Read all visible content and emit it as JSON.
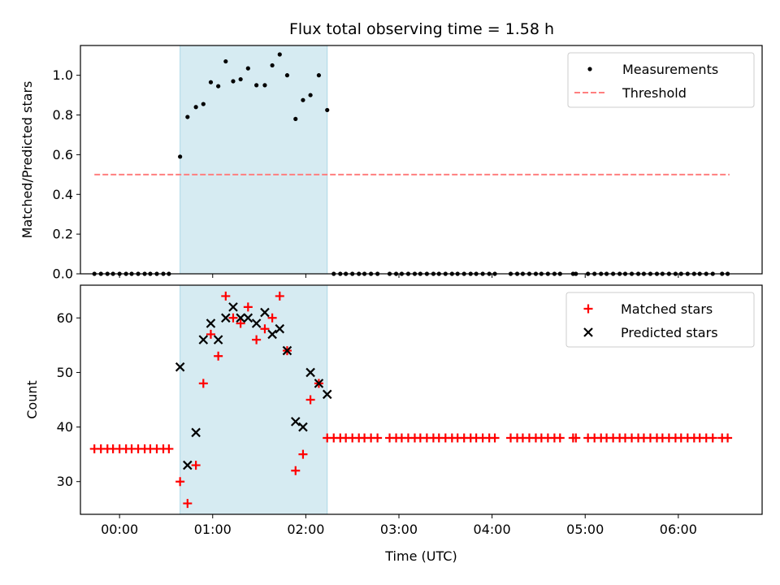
{
  "chart_data": [
    {
      "type": "scatter",
      "title": "Flux total observing time = 1.58 h",
      "xlabel": "",
      "ylabel": "Matched/Predicted stars",
      "ylim": [
        0,
        1.15
      ],
      "xlim_hours": [
        -0.42,
        6.9
      ],
      "yticks": [
        0.0,
        0.2,
        0.4,
        0.6,
        0.8,
        1.0
      ],
      "ytick_labels": [
        "0.0",
        "0.2",
        "0.4",
        "0.6",
        "0.8",
        "1.0"
      ],
      "shaded_region_hours": [
        0.65,
        2.23
      ],
      "legend_position": "upper right",
      "legend": [
        "Measurements",
        "Threshold"
      ],
      "threshold": {
        "name": "Threshold",
        "y": 0.5,
        "x_range_hours": [
          -0.27,
          6.55
        ]
      },
      "series": [
        {
          "name": "Measurements",
          "x_hours": [
            -0.27,
            -0.2,
            -0.13,
            -0.07,
            0.0,
            0.07,
            0.13,
            0.2,
            0.27,
            0.33,
            0.4,
            0.47,
            0.53,
            0.65,
            0.73,
            0.82,
            0.9,
            0.98,
            1.06,
            1.14,
            1.22,
            1.3,
            1.38,
            1.47,
            1.56,
            1.64,
            1.72,
            1.8,
            1.89,
            1.97,
            2.05,
            2.14,
            2.23,
            2.3,
            2.37,
            2.43,
            2.5,
            2.57,
            2.63,
            2.7,
            2.77,
            2.9,
            2.97,
            3.03,
            3.1,
            3.17,
            3.23,
            3.3,
            3.37,
            3.43,
            3.5,
            3.57,
            3.63,
            3.7,
            3.77,
            3.83,
            3.9,
            3.97,
            4.03,
            4.2,
            4.27,
            4.33,
            4.4,
            4.47,
            4.53,
            4.6,
            4.67,
            4.73,
            4.87,
            4.9,
            5.03,
            5.1,
            5.17,
            5.23,
            5.3,
            5.37,
            5.43,
            5.5,
            5.57,
            5.63,
            5.7,
            5.77,
            5.83,
            5.9,
            5.97,
            6.03,
            6.1,
            6.17,
            6.23,
            6.3,
            6.37,
            6.47,
            6.53
          ],
          "y": [
            0,
            0,
            0,
            0,
            0,
            0,
            0,
            0,
            0,
            0,
            0,
            0,
            0,
            0.59,
            0.79,
            0.84,
            0.855,
            0.965,
            0.945,
            1.07,
            0.97,
            0.98,
            1.035,
            0.95,
            0.95,
            1.05,
            1.105,
            1.0,
            0.78,
            0.875,
            0.9,
            1.0,
            0.825,
            0,
            0,
            0,
            0,
            0,
            0,
            0,
            0,
            0,
            0,
            0,
            0,
            0,
            0,
            0,
            0,
            0,
            0,
            0,
            0,
            0,
            0,
            0,
            0,
            0,
            0,
            0,
            0,
            0,
            0,
            0,
            0,
            0,
            0,
            0,
            0,
            0,
            0,
            0,
            0,
            0,
            0,
            0,
            0,
            0,
            0,
            0,
            0,
            0,
            0,
            0,
            0,
            0,
            0,
            0,
            0,
            0,
            0,
            0,
            0
          ],
          "color": "#000000"
        }
      ]
    },
    {
      "type": "scatter",
      "title": "",
      "xlabel": "Time (UTC)",
      "ylabel": "Count",
      "ylim": [
        24,
        66
      ],
      "xlim_hours": [
        -0.42,
        6.9
      ],
      "yticks": [
        30,
        40,
        50,
        60
      ],
      "ytick_labels": [
        "30",
        "40",
        "50",
        "60"
      ],
      "xticks_hours": [
        0,
        1,
        2,
        3,
        4,
        5,
        6
      ],
      "xtick_labels": [
        "00:00",
        "01:00",
        "02:00",
        "03:00",
        "04:00",
        "05:00",
        "06:00"
      ],
      "shaded_region_hours": [
        0.65,
        2.23
      ],
      "legend_position": "upper right",
      "legend": [
        "Matched stars",
        "Predicted stars"
      ],
      "series": [
        {
          "name": "Matched stars",
          "marker": "+",
          "color": "#ff0000",
          "x_hours": [
            -0.27,
            -0.2,
            -0.13,
            -0.07,
            0.0,
            0.07,
            0.13,
            0.2,
            0.27,
            0.33,
            0.4,
            0.47,
            0.53,
            0.65,
            0.73,
            0.82,
            0.9,
            0.98,
            1.06,
            1.14,
            1.22,
            1.3,
            1.38,
            1.47,
            1.56,
            1.64,
            1.72,
            1.8,
            1.89,
            1.97,
            2.05,
            2.14,
            2.23,
            2.3,
            2.37,
            2.43,
            2.5,
            2.57,
            2.63,
            2.7,
            2.77,
            2.9,
            2.97,
            3.03,
            3.1,
            3.17,
            3.23,
            3.3,
            3.37,
            3.43,
            3.5,
            3.57,
            3.63,
            3.7,
            3.77,
            3.83,
            3.9,
            3.97,
            4.03,
            4.2,
            4.27,
            4.33,
            4.4,
            4.47,
            4.53,
            4.6,
            4.67,
            4.73,
            4.87,
            4.9,
            5.03,
            5.1,
            5.17,
            5.23,
            5.3,
            5.37,
            5.43,
            5.5,
            5.57,
            5.63,
            5.7,
            5.77,
            5.83,
            5.9,
            5.97,
            6.03,
            6.1,
            6.17,
            6.23,
            6.3,
            6.37,
            6.47,
            6.53
          ],
          "y": [
            36,
            36,
            36,
            36,
            36,
            36,
            36,
            36,
            36,
            36,
            36,
            36,
            36,
            30,
            26,
            33,
            48,
            57,
            53,
            64,
            60,
            59,
            62,
            56,
            58,
            60,
            64,
            54,
            32,
            35,
            45,
            48,
            38,
            38,
            38,
            38,
            38,
            38,
            38,
            38,
            38,
            38,
            38,
            38,
            38,
            38,
            38,
            38,
            38,
            38,
            38,
            38,
            38,
            38,
            38,
            38,
            38,
            38,
            38,
            38,
            38,
            38,
            38,
            38,
            38,
            38,
            38,
            38,
            38,
            38,
            38,
            38,
            38,
            38,
            38,
            38,
            38,
            38,
            38,
            38,
            38,
            38,
            38,
            38,
            38,
            38,
            38,
            38,
            38,
            38,
            38,
            38,
            38
          ]
        },
        {
          "name": "Predicted stars",
          "marker": "x",
          "color": "#000000",
          "x_hours": [
            0.65,
            0.73,
            0.82,
            0.9,
            0.98,
            1.06,
            1.14,
            1.22,
            1.3,
            1.38,
            1.47,
            1.56,
            1.64,
            1.72,
            1.8,
            1.89,
            1.97,
            2.05,
            2.14,
            2.23
          ],
          "y": [
            51,
            33,
            39,
            56,
            59,
            56,
            60,
            62,
            60,
            60,
            59,
            61,
            57,
            58,
            54,
            41,
            40,
            50,
            48,
            46
          ]
        }
      ]
    }
  ],
  "colors": {
    "shade": "#add8e6",
    "threshold": "#ff7f7f",
    "matched": "#ff0000",
    "predicted": "#000000",
    "measurements": "#000000"
  }
}
